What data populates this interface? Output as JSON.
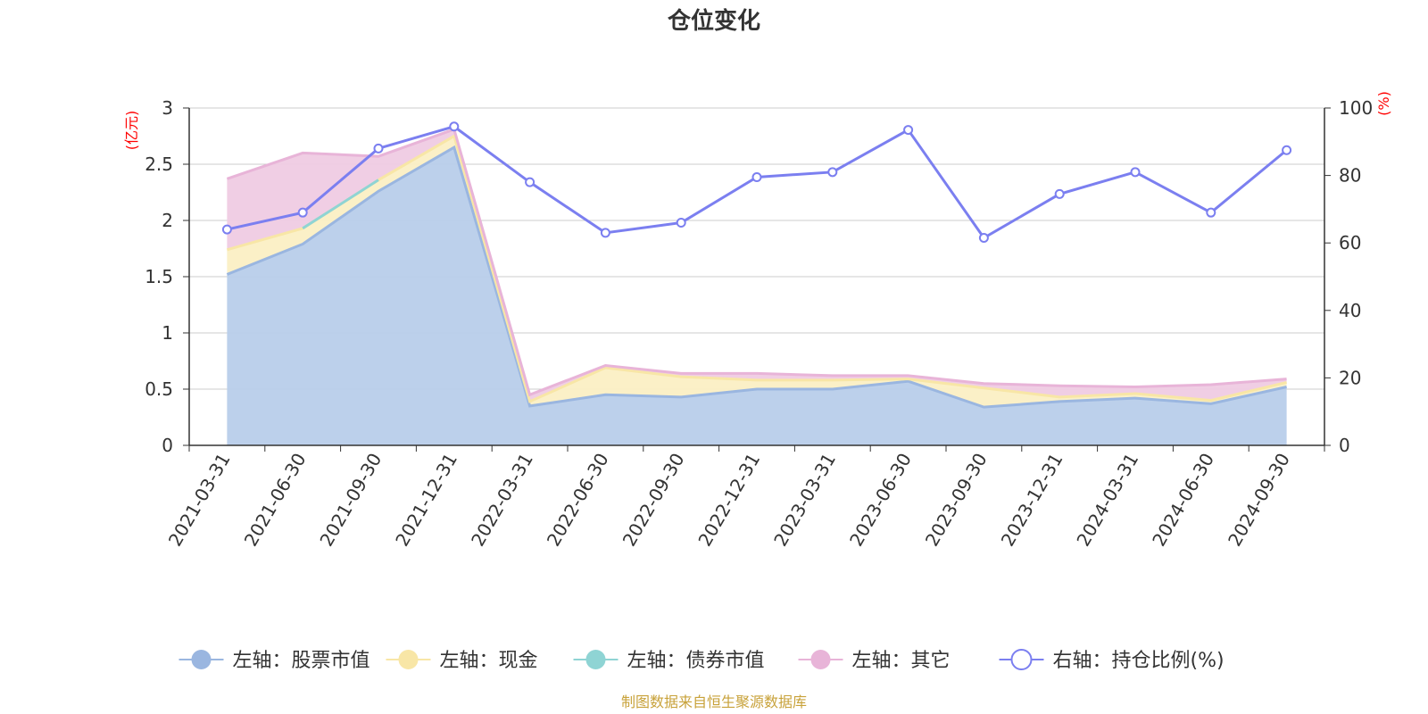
{
  "chart_data": {
    "type": "area",
    "title": "仓位变化",
    "source": "制图数据来自恒生聚源数据库",
    "categories": [
      "2021-03-31",
      "2021-06-30",
      "2021-09-30",
      "2021-12-31",
      "2022-03-31",
      "2022-06-30",
      "2022-09-30",
      "2022-12-31",
      "2023-03-31",
      "2023-06-30",
      "2023-09-30",
      "2023-12-31",
      "2024-03-31",
      "2024-06-30",
      "2024-09-30"
    ],
    "left_axis": {
      "unit": "(亿元)",
      "ylim": [
        0,
        3
      ],
      "ticks": [
        "0",
        "0.5",
        "1",
        "1.5",
        "2",
        "2.5",
        "3"
      ]
    },
    "right_axis": {
      "unit": "(%)",
      "ylim": [
        0,
        100
      ],
      "ticks": [
        "0",
        "20",
        "40",
        "60",
        "80",
        "100"
      ]
    },
    "series": [
      {
        "name": "左轴：股票市值",
        "axis": "left",
        "stack": true,
        "color": "#9ab6e0",
        "fill": "#b8cdea",
        "values": [
          1.52,
          1.79,
          2.26,
          2.65,
          0.35,
          0.45,
          0.43,
          0.5,
          0.5,
          0.57,
          0.34,
          0.39,
          0.42,
          0.37,
          0.52
        ]
      },
      {
        "name": "左轴：现金",
        "axis": "left",
        "stack": true,
        "color": "#f8e6a6",
        "fill": "#fbefc4",
        "values": [
          0.22,
          0.14,
          0.1,
          0.1,
          0.04,
          0.24,
          0.18,
          0.08,
          0.08,
          0.02,
          0.17,
          0.04,
          0.04,
          0.03,
          0.04
        ]
      },
      {
        "name": "左轴：债券市值",
        "axis": "left",
        "stack": true,
        "color": "#8fd4d4",
        "fill": "#bfe6e6",
        "values": [
          null,
          0.0,
          0.0,
          null,
          null,
          null,
          null,
          null,
          null,
          null,
          null,
          null,
          null,
          null,
          null
        ]
      },
      {
        "name": "左轴：其它",
        "axis": "left",
        "stack": true,
        "color": "#e8b4d8",
        "fill": "#efcbe3",
        "values": [
          0.63,
          0.67,
          0.21,
          0.06,
          0.06,
          0.02,
          0.03,
          0.06,
          0.04,
          0.03,
          0.04,
          0.1,
          0.06,
          0.14,
          0.03
        ]
      },
      {
        "name": "右轴：持仓比例(%)",
        "axis": "right",
        "stack": false,
        "color": "#7b7ff0",
        "values": [
          64,
          69,
          88,
          94.5,
          78,
          63,
          66,
          79.5,
          81,
          93.5,
          61.5,
          74.5,
          81,
          69,
          87.5
        ]
      }
    ]
  }
}
